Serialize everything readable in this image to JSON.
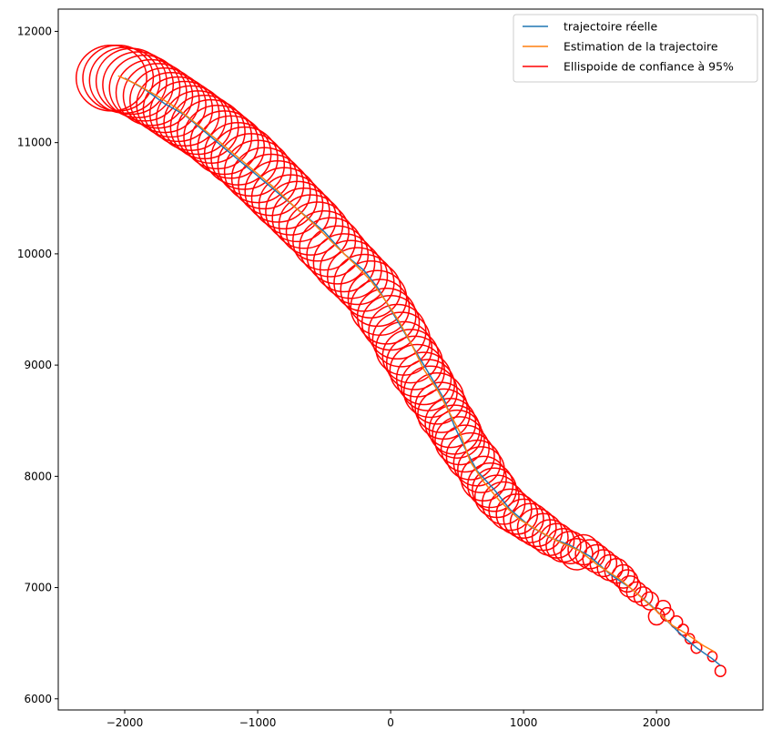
{
  "chart_data": {
    "type": "line",
    "title": "",
    "xlabel": "",
    "ylabel": "",
    "xlim": [
      -2500,
      2800
    ],
    "ylim": [
      5900,
      12200
    ],
    "x_ticks": [
      -2000,
      -1000,
      0,
      1000,
      2000
    ],
    "y_ticks": [
      6000,
      7000,
      8000,
      9000,
      10000,
      11000,
      12000
    ],
    "grid": false,
    "legend_position": "top-right",
    "series": [
      {
        "name": "trajectoire réelle",
        "color": "#1f77b4",
        "x": [
          2480,
          2420,
          2300,
          2200,
          2080,
          1950,
          1800,
          1650,
          1500,
          1350,
          1200,
          1050,
          900,
          780,
          650,
          560,
          480,
          400,
          300,
          200,
          100,
          0,
          -100,
          -200,
          -350,
          -500,
          -650,
          -800,
          -950,
          -1100,
          -1250,
          -1400,
          -1550,
          -1700,
          -1850,
          -2000
        ],
        "y": [
          6300,
          6360,
          6460,
          6560,
          6700,
          6850,
          7000,
          7120,
          7280,
          7380,
          7450,
          7550,
          7700,
          7880,
          8050,
          8250,
          8450,
          8700,
          8900,
          9100,
          9300,
          9500,
          9700,
          9850,
          10000,
          10200,
          10350,
          10500,
          10650,
          10800,
          10950,
          11100,
          11250,
          11350,
          11480,
          11580
        ]
      },
      {
        "name": "Estimation de la trajectoire",
        "color": "#ff7f0e",
        "x": [
          2440,
          2350,
          2230,
          2120,
          1990,
          1840,
          1720,
          1560,
          1420,
          1250,
          1100,
          960,
          820,
          700,
          600,
          520,
          430,
          350,
          250,
          160,
          60,
          -40,
          -150,
          -280,
          -420,
          -560,
          -720,
          -860,
          -1000,
          -1150,
          -1300,
          -1470,
          -1620,
          -1770,
          -1920,
          -2050
        ],
        "y": [
          6420,
          6480,
          6580,
          6660,
          6800,
          6960,
          7080,
          7200,
          7330,
          7420,
          7520,
          7620,
          7780,
          7950,
          8130,
          8400,
          8600,
          8780,
          8960,
          9180,
          9400,
          9580,
          9760,
          9920,
          10080,
          10250,
          10420,
          10580,
          10720,
          10870,
          11020,
          11180,
          11320,
          11430,
          11530,
          11600
        ]
      },
      {
        "name": "Ellispoide de confiance à 95%",
        "color": "#ff0000",
        "kind": "ellipses",
        "centers_x": [
          2480,
          2420,
          2300,
          2250,
          2200,
          2150,
          2080,
          2050,
          2000,
          1950,
          1900,
          1850,
          1800,
          1780,
          1750,
          1700,
          1650,
          1600,
          1550,
          1500,
          1450,
          1400,
          1350,
          1300,
          1250,
          1200,
          1150,
          1100,
          1050,
          1000,
          950,
          900,
          850,
          800,
          780,
          750,
          700,
          680,
          650,
          600,
          560,
          520,
          500,
          480,
          450,
          400,
          380,
          350,
          300,
          280,
          250,
          200,
          180,
          150,
          100,
          80,
          50,
          0,
          -30,
          -80,
          -100,
          -150,
          -200,
          -250,
          -300,
          -350,
          -400,
          -450,
          -500,
          -550,
          -600,
          -650,
          -700,
          -750,
          -800,
          -850,
          -900,
          -950,
          -1000,
          -1050,
          -1100,
          -1150,
          -1200,
          -1250,
          -1300,
          -1350,
          -1400,
          -1450,
          -1500,
          -1550,
          -1600,
          -1650,
          -1700,
          -1750,
          -1800,
          -1850,
          -1900,
          -1950,
          -2000,
          -2050,
          -2100
        ],
        "centers_y": [
          6250,
          6380,
          6460,
          6540,
          6620,
          6690,
          6760,
          6820,
          6740,
          6880,
          6920,
          6960,
          7010,
          7060,
          7100,
          7150,
          7180,
          7220,
          7260,
          7300,
          7340,
          7300,
          7360,
          7380,
          7420,
          7450,
          7500,
          7540,
          7580,
          7620,
          7660,
          7700,
          7760,
          7820,
          7880,
          7920,
          7980,
          8060,
          8120,
          8180,
          8250,
          8320,
          8380,
          8420,
          8480,
          8560,
          8620,
          8700,
          8760,
          8820,
          8880,
          8950,
          9020,
          9080,
          9150,
          9230,
          9300,
          9380,
          9440,
          9520,
          9600,
          9680,
          9740,
          9800,
          9860,
          9920,
          9990,
          10060,
          10120,
          10200,
          10260,
          10320,
          10380,
          10440,
          10500,
          10560,
          10620,
          10680,
          10740,
          10800,
          10860,
          10900,
          10960,
          11000,
          11050,
          11100,
          11140,
          11180,
          11220,
          11260,
          11300,
          11340,
          11380,
          11420,
          11450,
          11490,
          11520,
          11550,
          11560,
          11580,
          11580
        ],
        "radius_x": [
          40,
          35,
          40,
          35,
          40,
          45,
          50,
          55,
          60,
          65,
          70,
          75,
          80,
          80,
          85,
          90,
          95,
          100,
          105,
          110,
          115,
          120,
          125,
          130,
          130,
          135,
          140,
          145,
          150,
          150,
          155,
          160,
          160,
          165,
          165,
          170,
          170,
          175,
          175,
          180,
          180,
          185,
          185,
          190,
          190,
          195,
          195,
          200,
          200,
          200,
          205,
          205,
          210,
          210,
          210,
          215,
          215,
          215,
          220,
          220,
          220,
          225,
          225,
          225,
          230,
          230,
          230,
          235,
          235,
          235,
          240,
          240,
          240,
          240,
          245,
          245,
          245,
          245,
          250,
          250,
          250,
          250,
          250,
          255,
          255,
          255,
          255,
          255,
          260,
          260,
          260,
          260,
          260,
          260,
          265,
          265,
          265,
          265,
          265,
          265,
          265
        ],
        "radius_y": [
          50,
          45,
          50,
          45,
          50,
          55,
          60,
          65,
          75,
          80,
          85,
          90,
          95,
          100,
          105,
          110,
          115,
          120,
          125,
          130,
          135,
          140,
          145,
          150,
          155,
          160,
          165,
          170,
          175,
          175,
          180,
          185,
          190,
          190,
          195,
          200,
          200,
          205,
          205,
          210,
          210,
          215,
          215,
          220,
          220,
          225,
          225,
          230,
          230,
          230,
          235,
          235,
          240,
          240,
          240,
          245,
          245,
          245,
          250,
          250,
          250,
          255,
          255,
          255,
          260,
          260,
          260,
          265,
          265,
          265,
          270,
          270,
          270,
          270,
          275,
          275,
          275,
          275,
          280,
          280,
          280,
          280,
          280,
          285,
          285,
          285,
          285,
          285,
          290,
          290,
          290,
          290,
          290,
          290,
          295,
          295,
          295,
          295,
          295,
          295,
          295
        ]
      }
    ]
  },
  "legend": {
    "items": [
      {
        "label": "trajectoire réelle",
        "color": "#1f77b4"
      },
      {
        "label": "Estimation de la trajectoire",
        "color": "#ff7f0e"
      },
      {
        "label": "Ellispoide de confiance à 95%",
        "color": "#ff0000"
      }
    ]
  }
}
